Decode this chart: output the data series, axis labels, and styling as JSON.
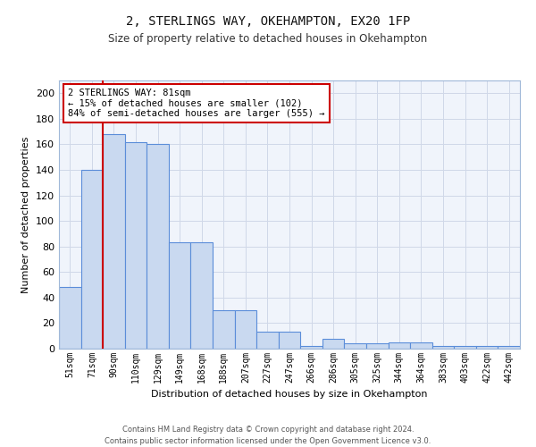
{
  "title1": "2, STERLINGS WAY, OKEHAMPTON, EX20 1FP",
  "title2": "Size of property relative to detached houses in Okehampton",
  "xlabel": "Distribution of detached houses by size in Okehampton",
  "ylabel": "Number of detached properties",
  "categories": [
    "51sqm",
    "71sqm",
    "90sqm",
    "110sqm",
    "129sqm",
    "149sqm",
    "168sqm",
    "188sqm",
    "207sqm",
    "227sqm",
    "247sqm",
    "266sqm",
    "286sqm",
    "305sqm",
    "325sqm",
    "344sqm",
    "364sqm",
    "383sqm",
    "403sqm",
    "422sqm",
    "442sqm"
  ],
  "values": [
    48,
    140,
    168,
    162,
    160,
    83,
    83,
    30,
    30,
    13,
    13,
    2,
    8,
    4,
    4,
    5,
    5,
    2,
    2,
    2,
    2
  ],
  "bar_color": "#c9d9f0",
  "bar_edge_color": "#5b8dd9",
  "red_line_x": 1.5,
  "annotation_text": "2 STERLINGS WAY: 81sqm\n← 15% of detached houses are smaller (102)\n84% of semi-detached houses are larger (555) →",
  "annotation_box_color": "#ffffff",
  "annotation_box_edge": "#cc0000",
  "grid_color": "#d0d8e8",
  "footer": "Contains HM Land Registry data © Crown copyright and database right 2024.\nContains public sector information licensed under the Open Government Licence v3.0.",
  "ylim": [
    0,
    210
  ],
  "yticks": [
    0,
    20,
    40,
    60,
    80,
    100,
    120,
    140,
    160,
    180,
    200
  ]
}
